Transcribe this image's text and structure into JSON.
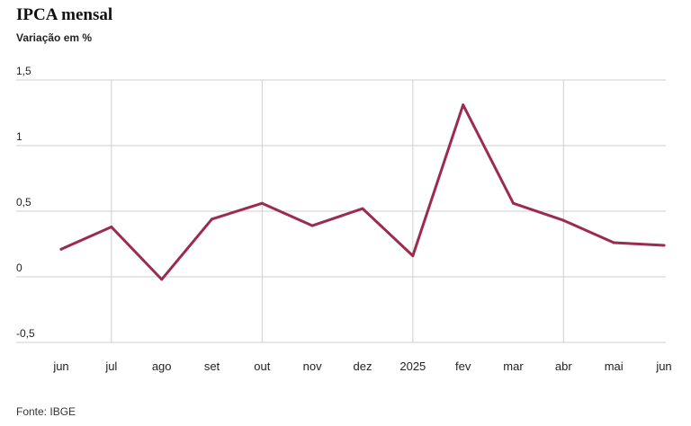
{
  "chart_data": {
    "type": "line",
    "title": "IPCA mensal",
    "subtitle": "Variação em %",
    "source": "Fonte: IBGE",
    "categories": [
      "jun",
      "jul",
      "ago",
      "set",
      "out",
      "nov",
      "dez",
      "2025",
      "fev",
      "mar",
      "abr",
      "mai",
      "jun"
    ],
    "series": [
      {
        "values": [
          0.21,
          0.38,
          -0.02,
          0.44,
          0.56,
          0.39,
          0.52,
          0.16,
          1.31,
          0.56,
          0.43,
          0.26,
          0.24
        ]
      }
    ],
    "ylim": [
      -0.5,
      1.5
    ],
    "yticks": [
      1.5,
      1,
      0.5,
      0,
      -0.5
    ],
    "ytick_labels": [
      "1,5",
      "1",
      "0,5",
      "0",
      "-0,5"
    ],
    "grid": true,
    "colors": {
      "line": "#9b2c4f",
      "grid": "#cfcfcf"
    }
  }
}
